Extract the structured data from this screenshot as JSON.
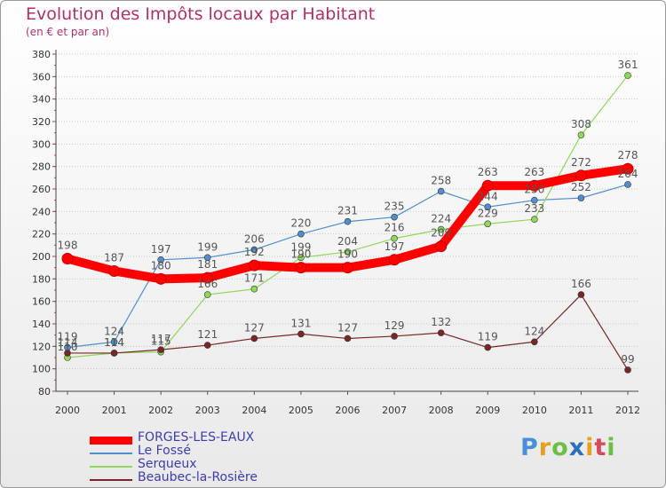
{
  "chart_data": {
    "type": "line",
    "title": "Evolution des Impôts locaux par Habitant",
    "subtitle": "(en € et par an)",
    "categories": [
      "2000",
      "2001",
      "2002",
      "2003",
      "2004",
      "2005",
      "2006",
      "2007",
      "2008",
      "2009",
      "2010",
      "2011",
      "2012"
    ],
    "ylim": [
      80,
      380
    ],
    "ytick_step": 20,
    "grid": "horizontal-dotted",
    "legend_position": "bottom-left",
    "series": [
      {
        "name": "FORGES-LES-EAUX",
        "color": "#ff0000",
        "values": [
          198,
          187,
          180,
          181,
          192,
          190,
          190,
          197,
          209,
          263,
          263,
          272,
          278
        ],
        "labels": [
          "198",
          "187",
          "180",
          "181",
          "192",
          "190",
          "190",
          "197",
          "209",
          "263",
          "263",
          "272",
          "278"
        ]
      },
      {
        "name": "Le Fossé",
        "color": "#4f8fd0",
        "values": [
          119,
          124,
          197,
          199,
          206,
          220,
          231,
          235,
          258,
          244,
          250,
          252,
          264
        ],
        "labels": [
          "119",
          "124",
          "197",
          "199",
          "206",
          "220",
          "231",
          "235",
          "258",
          "244",
          "250",
          "252",
          "264"
        ]
      },
      {
        "name": "Serqueux",
        "color": "#8fd85a",
        "values": [
          110,
          114,
          115,
          166,
          171,
          199,
          204,
          216,
          224,
          229,
          233,
          308,
          361
        ],
        "labels": [
          "110",
          "114",
          "115",
          "166",
          "171",
          "199",
          "204",
          "216",
          "224",
          "229",
          "233",
          "308",
          "361"
        ]
      },
      {
        "name": "Beaubec-la-Rosière",
        "color": "#7a2626",
        "values": [
          114,
          114,
          117,
          121,
          127,
          131,
          127,
          129,
          132,
          119,
          124,
          166,
          99
        ],
        "labels": [
          "114",
          "114",
          "117",
          "121",
          "127",
          "131",
          "127",
          "129",
          "132",
          "119",
          "124",
          "166",
          "99"
        ]
      }
    ]
  },
  "logo": {
    "letters": [
      "P",
      "r",
      "o",
      "x",
      "i",
      "t",
      "i"
    ],
    "colors": [
      "#4a90d9",
      "#e6a020",
      "#6cbe45",
      "#2f6fb8",
      "#e6a020",
      "#d9475a",
      "#6cbe45"
    ]
  }
}
